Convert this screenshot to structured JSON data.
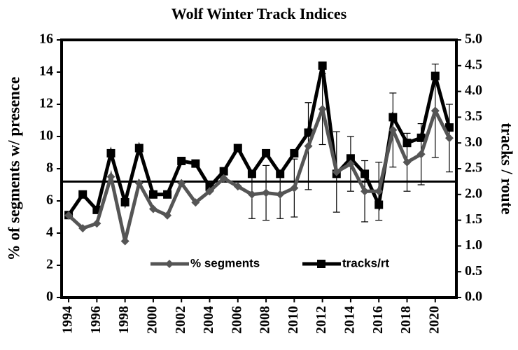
{
  "chart_data": {
    "type": "line",
    "title": "Wolf Winter Track Indices",
    "y_label": "% of segments w/ presence",
    "y2_label": "tracks / route",
    "x": [
      1994,
      1995,
      1996,
      1997,
      1998,
      1999,
      2000,
      2001,
      2002,
      2003,
      2004,
      2005,
      2006,
      2007,
      2008,
      2009,
      2010,
      2011,
      2012,
      2013,
      2014,
      2015,
      2016,
      2017,
      2018,
      2019,
      2020,
      2021
    ],
    "xlim": [
      1993.5,
      2021.5
    ],
    "xticks": [
      1994,
      1996,
      1998,
      2000,
      2002,
      2004,
      2006,
      2008,
      2010,
      2012,
      2014,
      2016,
      2018,
      2020
    ],
    "ylim": [
      0,
      16
    ],
    "yticks": [
      0,
      2,
      4,
      6,
      8,
      10,
      12,
      14,
      16
    ],
    "y2lim": [
      0,
      5
    ],
    "y2ticks": [
      {
        "value": 0,
        "label": "0.0"
      },
      0.5,
      {
        "value": 1,
        "label": "1.0"
      },
      1.5,
      {
        "value": 2,
        "label": "2.0"
      },
      2.5,
      {
        "value": 3,
        "label": "3.0"
      },
      3.5,
      {
        "value": 4,
        "label": "4.0"
      },
      4.5,
      {
        "value": 5,
        "label": "5.0"
      }
    ],
    "reference_line": 7.2,
    "legend": "bottom",
    "series": [
      {
        "name": "% segments",
        "color": "#555555",
        "marker": "diamond",
        "values": [
          5.1,
          4.3,
          4.6,
          7.5,
          3.5,
          7.1,
          5.5,
          5.1,
          7.1,
          5.9,
          6.6,
          7.4,
          6.9,
          6.4,
          6.5,
          6.4,
          6.8,
          9.4,
          11.7,
          7.8,
          8.3,
          6.6,
          6.6,
          10.4,
          8.4,
          8.9,
          11.6,
          9.9
        ],
        "errors": [
          null,
          null,
          null,
          null,
          null,
          null,
          null,
          null,
          null,
          null,
          null,
          null,
          null,
          1.5,
          1.7,
          1.5,
          1.8,
          2.7,
          2.2,
          2.5,
          1.7,
          1.9,
          1.8,
          2.3,
          1.8,
          1.9,
          2.9,
          2.1
        ]
      },
      {
        "name": "tracks/rt",
        "color": "#000000",
        "marker": "square",
        "axis": "y2",
        "values": [
          1.6,
          2.0,
          1.7,
          2.8,
          1.85,
          2.9,
          2.0,
          2.0,
          2.65,
          2.6,
          2.15,
          2.45,
          2.9,
          2.4,
          2.8,
          2.4,
          2.8,
          3.2,
          4.5,
          2.4,
          2.7,
          2.4,
          1.8,
          3.5,
          3.0,
          3.1,
          4.3,
          3.3
        ]
      }
    ]
  }
}
